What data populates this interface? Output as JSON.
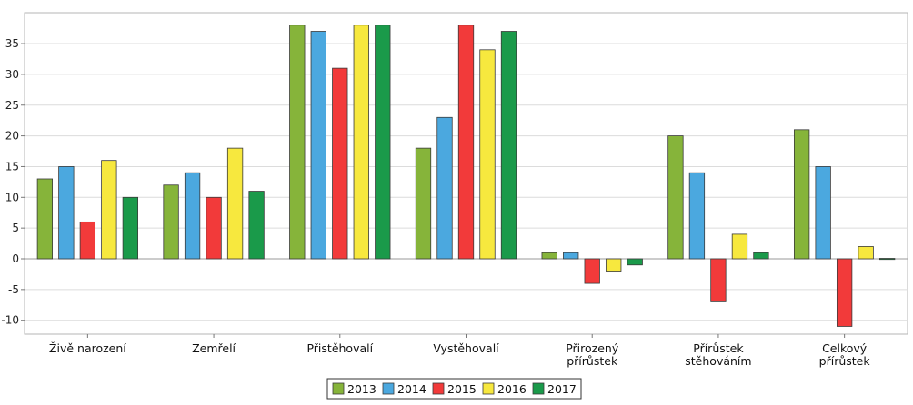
{
  "chart_data": {
    "type": "bar",
    "categories": [
      [
        "Živě narození"
      ],
      [
        "Zemřelí"
      ],
      [
        "Přistěhovalí"
      ],
      [
        "Vystěhovalí"
      ],
      [
        "Přirozený",
        "přírůstek"
      ],
      [
        "Přírůstek",
        "stěhováním"
      ],
      [
        "Celkový",
        "přírůstek"
      ]
    ],
    "series": [
      {
        "name": "2013",
        "color": "#86b43a",
        "values": [
          13,
          12,
          38,
          18,
          1,
          20,
          21
        ]
      },
      {
        "name": "2014",
        "color": "#4ba8df",
        "values": [
          15,
          14,
          37,
          23,
          1,
          14,
          15
        ]
      },
      {
        "name": "2015",
        "color": "#f23a3a",
        "values": [
          6,
          10,
          31,
          38,
          -4,
          -7,
          -11
        ]
      },
      {
        "name": "2016",
        "color": "#f7e83e",
        "values": [
          16,
          18,
          38,
          34,
          -2,
          4,
          2
        ]
      },
      {
        "name": "2017",
        "color": "#1a9a4a",
        "values": [
          10,
          11,
          38,
          37,
          -1,
          1,
          0
        ]
      }
    ],
    "ylim": [
      -11,
      39
    ],
    "yticks": [
      -10,
      -5,
      0,
      5,
      10,
      15,
      20,
      25,
      30,
      35
    ],
    "grid": true,
    "legend_position": "bottom-center"
  }
}
